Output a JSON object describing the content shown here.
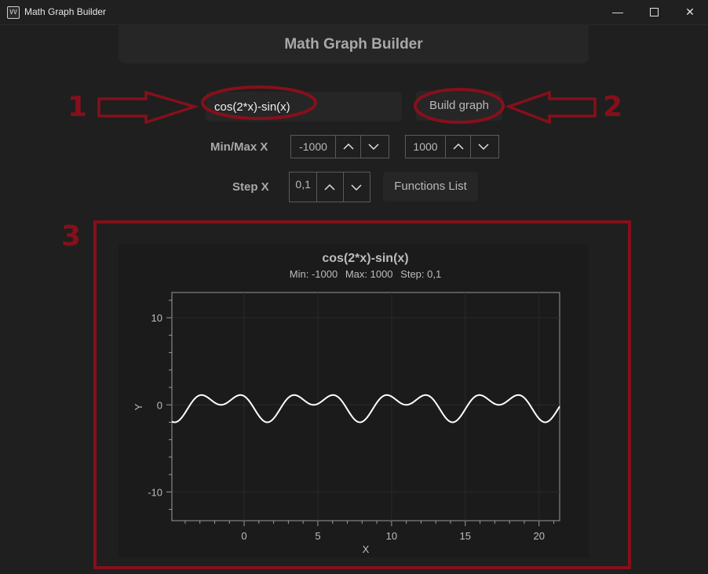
{
  "window": {
    "title": "Math Graph Builder",
    "icon": "graph-app-icon",
    "controls": [
      "minimize-icon",
      "maximize-icon",
      "close-icon"
    ]
  },
  "header": {
    "title": "Math Graph Builder"
  },
  "function_input": {
    "value": "cos(2*x)-sin(x)"
  },
  "build_button": {
    "label": "Build graph"
  },
  "minmax": {
    "label": "Min/Max X",
    "min_value": "-1000",
    "max_value": "1000"
  },
  "step": {
    "label": "Step X",
    "value": "0,1"
  },
  "functions_button": {
    "label": "Functions List"
  },
  "annotations": {
    "one": "1",
    "two": "2",
    "three": "3",
    "color": "#85101b"
  },
  "plot": {
    "title": "cos(2*x)-sin(x)",
    "sub_min": "Min: -1000",
    "sub_max": "Max: 1000",
    "sub_step": "Step: 0,1"
  },
  "chart_data": {
    "type": "line",
    "title": "cos(2*x)-sin(x)",
    "xlabel": "X",
    "ylabel": "Y",
    "xlim": [
      -4.9,
      21.4
    ],
    "ylim": [
      -13.3,
      12.9
    ],
    "x_ticks": [
      0,
      5,
      10,
      15,
      20
    ],
    "y_ticks": [
      -10,
      0,
      10
    ],
    "grid": true,
    "series": [
      {
        "function": "cos(2*x)-sin(x)",
        "x_start": -4.9,
        "x_end": 21.4,
        "step": 0.1,
        "color": "#ffffff"
      }
    ]
  }
}
